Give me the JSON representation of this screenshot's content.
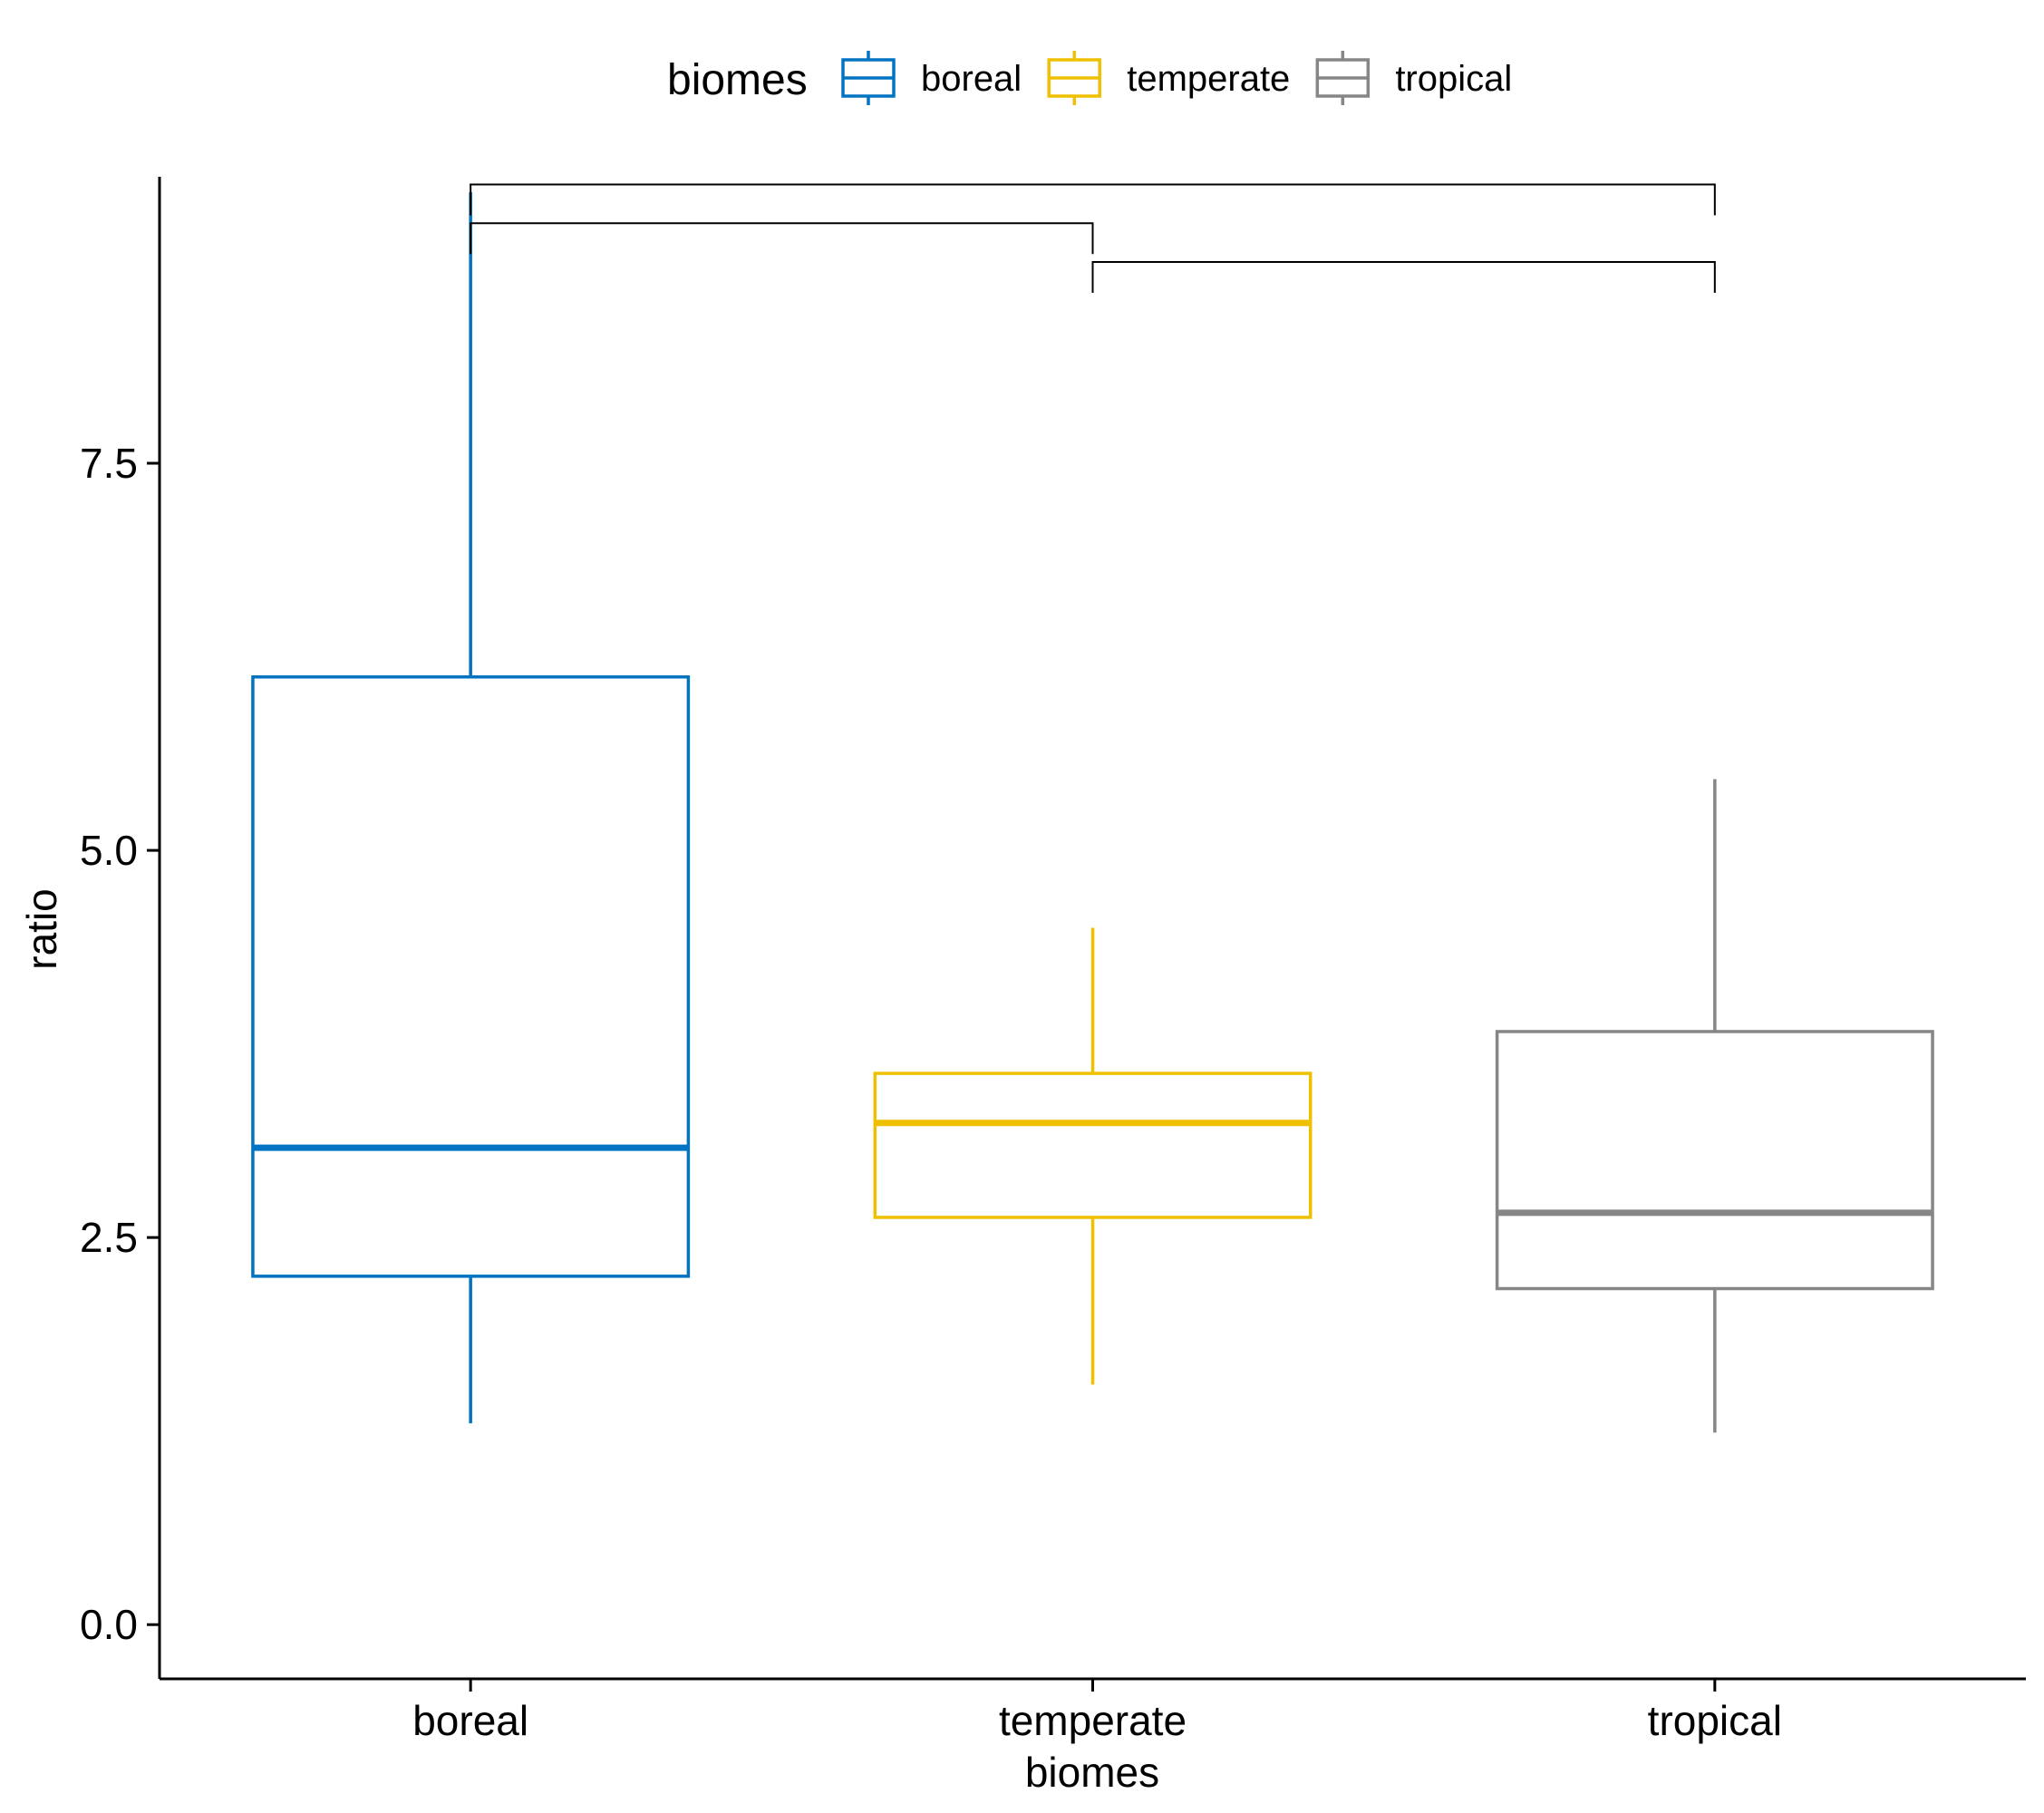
{
  "chart_data": {
    "type": "box",
    "title": "",
    "xlabel": "biomes",
    "ylabel": "ratio",
    "ylim": [
      -0.35,
      9.35
    ],
    "yticks": [
      0.0,
      2.5,
      5.0,
      7.5
    ],
    "ytick_labels": [
      "0.0",
      "2.5",
      "5.0",
      "7.5"
    ],
    "categories": [
      "boreal",
      "temperate",
      "tropical"
    ],
    "grid": false,
    "legend": {
      "title": "biomes",
      "position": "top",
      "entries": [
        "boreal",
        "temperate",
        "tropical"
      ]
    },
    "colors": {
      "boreal": "#0073C2",
      "temperate": "#EFC000",
      "tropical": "#868686"
    },
    "series": [
      {
        "name": "boreal",
        "whisker_low": 1.3,
        "q1": 2.25,
        "median": 3.08,
        "q3": 6.12,
        "whisker_high": 9.25
      },
      {
        "name": "temperate",
        "whisker_low": 1.55,
        "q1": 2.63,
        "median": 3.24,
        "q3": 3.56,
        "whisker_high": 4.5
      },
      {
        "name": "tropical",
        "whisker_low": 1.24,
        "q1": 2.17,
        "median": 2.66,
        "q3": 3.83,
        "whisker_high": 5.46
      }
    ],
    "comparisons": [
      {
        "from": "boreal",
        "to": "tropical",
        "y": 9.3
      },
      {
        "from": "boreal",
        "to": "temperate",
        "y": 9.05
      },
      {
        "from": "temperate",
        "to": "tropical",
        "y": 8.8
      }
    ]
  }
}
